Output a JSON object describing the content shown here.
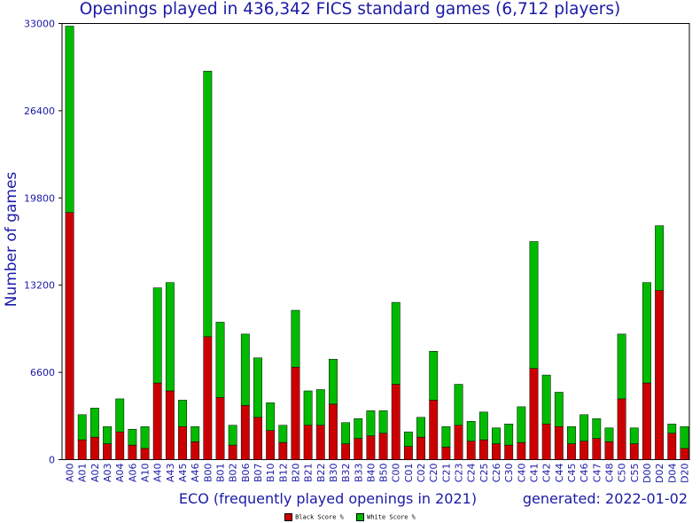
{
  "chart_data": {
    "type": "bar",
    "stacked": true,
    "title": "Openings played in 436,342 FICS standard games (6,712 players)",
    "xlabel": "ECO (frequently played openings in 2021)",
    "ylabel": "Number of games",
    "generated": "generated: 2022-01-02",
    "ylim": [
      0,
      33000
    ],
    "yticks": [
      "0",
      "6600",
      "13200",
      "19800",
      "26400",
      "33000"
    ],
    "grid": false,
    "legend_position": "bottom-center",
    "categories": [
      "A00",
      "A01",
      "A02",
      "A03",
      "A04",
      "A06",
      "A10",
      "A40",
      "A43",
      "A45",
      "A46",
      "B00",
      "B01",
      "B02",
      "B06",
      "B07",
      "B10",
      "B12",
      "B20",
      "B21",
      "B22",
      "B30",
      "B32",
      "B33",
      "B40",
      "B50",
      "C00",
      "C01",
      "C02",
      "C20",
      "C21",
      "C23",
      "C24",
      "C25",
      "C26",
      "C30",
      "C40",
      "C41",
      "C42",
      "C44",
      "C45",
      "C46",
      "C47",
      "C48",
      "C50",
      "C55",
      "D00",
      "D02",
      "D04",
      "D20"
    ],
    "series": [
      {
        "name": "Black Score %",
        "color": "#cc0000",
        "values": [
          18700,
          1500,
          1700,
          1200,
          2100,
          1100,
          850,
          5800,
          5200,
          2500,
          1350,
          9300,
          4700,
          1100,
          4100,
          3200,
          2200,
          1300,
          7000,
          2600,
          2600,
          4200,
          1200,
          1600,
          1800,
          2000,
          5700,
          1000,
          1700,
          4500,
          950,
          2600,
          1400,
          1500,
          1200,
          1100,
          1300,
          6900,
          2700,
          2500,
          1200,
          1400,
          1600,
          1350,
          4600,
          1200,
          5800,
          12800,
          2000,
          850
        ]
      },
      {
        "name": "White Score %",
        "color": "#00bb00",
        "values": [
          14100,
          1900,
          2200,
          1300,
          2500,
          1200,
          1650,
          7200,
          8200,
          2000,
          1150,
          20100,
          5700,
          1500,
          5400,
          4500,
          2100,
          1300,
          4300,
          2600,
          2700,
          3400,
          1600,
          1500,
          1900,
          1700,
          6200,
          1100,
          1500,
          3700,
          1550,
          3100,
          1500,
          2100,
          1200,
          1600,
          2700,
          9600,
          3700,
          2600,
          1300,
          2000,
          1500,
          1050,
          4900,
          1200,
          7600,
          4900,
          700,
          1650
        ]
      }
    ]
  }
}
